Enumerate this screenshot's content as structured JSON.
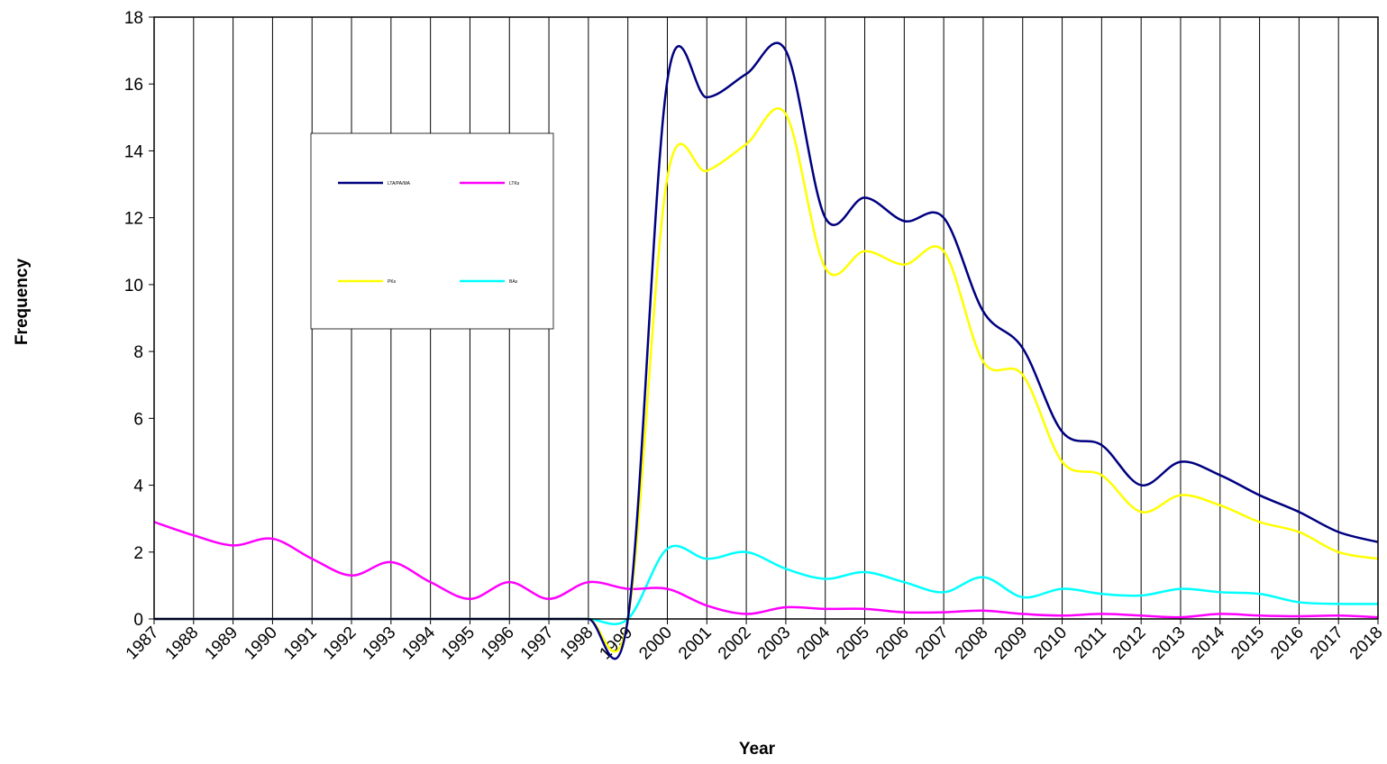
{
  "chart_data": {
    "type": "line",
    "x_label": "Year",
    "y_label": "Frequency",
    "x": [
      1987,
      1988,
      1989,
      1990,
      1991,
      1992,
      1993,
      1994,
      1995,
      1996,
      1997,
      1998,
      1999,
      2000,
      2001,
      2002,
      2003,
      2004,
      2005,
      2006,
      2007,
      2008,
      2009,
      2010,
      2011,
      2012,
      2013,
      2014,
      2015,
      2016,
      2017,
      2018
    ],
    "xlim": [
      1987,
      2018
    ],
    "ylim": [
      0,
      18
    ],
    "yticks": [
      0,
      2,
      4,
      6,
      8,
      10,
      12,
      14,
      16,
      18
    ],
    "grid": true,
    "smooth": true,
    "series": [
      {
        "name": "LTA/PA/MA",
        "color": "#000080",
        "values": [
          0,
          0,
          0,
          0,
          0,
          0,
          0,
          0,
          0,
          0,
          0,
          0,
          0,
          16.1,
          15.6,
          16.3,
          17.0,
          12.0,
          12.6,
          11.9,
          12.0,
          9.2,
          8.1,
          5.6,
          5.2,
          4.0,
          4.7,
          4.3,
          3.7,
          3.2,
          2.6,
          2.3
        ]
      },
      {
        "name": "LTKs",
        "color": "#ff00ff",
        "values": [
          2.9,
          2.5,
          2.2,
          2.4,
          1.8,
          1.3,
          1.7,
          1.1,
          0.6,
          1.1,
          0.6,
          1.1,
          0.9,
          0.9,
          0.4,
          0.15,
          0.35,
          0.3,
          0.3,
          0.2,
          0.2,
          0.25,
          0.15,
          0.1,
          0.15,
          0.1,
          0.05,
          0.15,
          0.1,
          0.08,
          0.1,
          0.05
        ]
      },
      {
        "name": "PKs",
        "color": "#ffff00",
        "values": [
          0,
          0,
          0,
          0,
          0,
          0,
          0,
          0,
          0,
          0,
          0,
          0,
          0,
          13.2,
          13.4,
          14.2,
          15.1,
          10.5,
          11.0,
          10.6,
          11.0,
          7.7,
          7.3,
          4.7,
          4.3,
          3.2,
          3.7,
          3.4,
          2.9,
          2.6,
          2.0,
          1.8
        ]
      },
      {
        "name": "BAs",
        "color": "#00ffff",
        "values": [
          0,
          0,
          0,
          0,
          0,
          0,
          0,
          0,
          0,
          0,
          0,
          0,
          0,
          2.1,
          1.8,
          2.0,
          1.5,
          1.2,
          1.4,
          1.1,
          0.8,
          1.25,
          0.65,
          0.9,
          0.75,
          0.7,
          0.9,
          0.8,
          0.75,
          0.5,
          0.45,
          0.45
        ]
      }
    ]
  }
}
